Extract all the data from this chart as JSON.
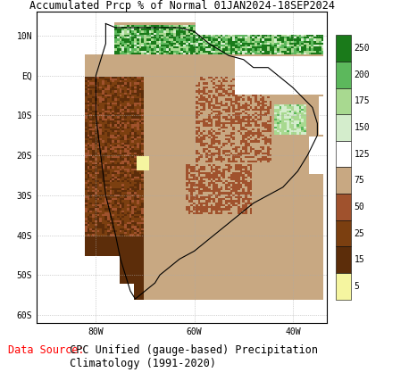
{
  "title": "Accumulated Prcp % of Normal 01JAN2024-18SEP2024",
  "title_fontsize": 8.5,
  "title_color": "black",
  "colorbar_colors_top_to_bottom": [
    "#1a7a1a",
    "#5cb85c",
    "#a8d990",
    "#d4edcc",
    "#ffffff",
    "#c8a882",
    "#a0522d",
    "#7b3f10",
    "#5c2d0a",
    "#f5f5a0"
  ],
  "colorbar_labels_top_to_bottom": [
    "250",
    "200",
    "175",
    "150",
    "125",
    "75",
    "50",
    "25",
    "15",
    "5"
  ],
  "data_source_label": "Data Source:",
  "data_source_label_color": "red",
  "data_source_text": " CPC Unified (gauge-based) Precipitation\n Climatology (1991-2020)",
  "data_source_text_color": "black",
  "data_source_fontsize": 8.5,
  "lon_min": -92,
  "lon_max": -33,
  "lat_min": -62,
  "lat_max": 16,
  "xticks": [
    -80,
    -60,
    -40
  ],
  "xtick_labels": [
    "80W",
    "60W",
    "40W"
  ],
  "yticks": [
    10,
    0,
    -10,
    -20,
    -30,
    -40,
    -50,
    -60
  ],
  "ytick_labels": [
    "10N",
    "EQ",
    "10S",
    "20S",
    "30S",
    "40S",
    "50S",
    "60S"
  ]
}
